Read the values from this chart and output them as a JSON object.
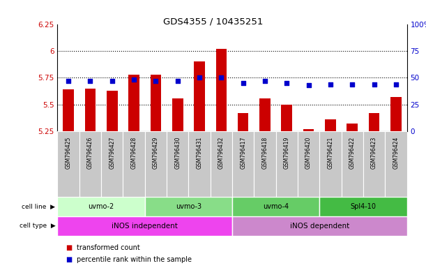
{
  "title": "GDS4355 / 10435251",
  "samples": [
    "GSM796425",
    "GSM796426",
    "GSM796427",
    "GSM796428",
    "GSM796429",
    "GSM796430",
    "GSM796431",
    "GSM796432",
    "GSM796417",
    "GSM796418",
    "GSM796419",
    "GSM796420",
    "GSM796421",
    "GSM796422",
    "GSM796423",
    "GSM796424"
  ],
  "transformed_count": [
    5.64,
    5.65,
    5.63,
    5.78,
    5.78,
    5.56,
    5.9,
    6.02,
    5.42,
    5.56,
    5.5,
    5.27,
    5.36,
    5.32,
    5.42,
    5.57
  ],
  "percentile_rank": [
    47,
    47,
    47,
    48,
    47,
    47,
    50,
    50,
    45,
    47,
    45,
    43,
    44,
    44,
    44,
    44
  ],
  "ylim_left": [
    5.25,
    6.25
  ],
  "ylim_right": [
    0,
    100
  ],
  "yticks_left": [
    5.25,
    5.5,
    5.75,
    6.0,
    6.25
  ],
  "yticks_right": [
    0,
    25,
    50,
    75,
    100
  ],
  "ytick_labels_left": [
    "5.25",
    "5.5",
    "5.75",
    "6",
    "6.25"
  ],
  "ytick_labels_right": [
    "0",
    "25",
    "50",
    "75",
    "100%"
  ],
  "bar_color": "#cc0000",
  "dot_color": "#0000cc",
  "grid_dotted_lines": [
    5.5,
    5.75,
    6.0
  ],
  "cell_line_labels": [
    "uvmo-2",
    "uvmo-3",
    "uvmo-4",
    "Spl4-10"
  ],
  "cell_line_colors": [
    "#ccffcc",
    "#88dd88",
    "#66cc66",
    "#44bb44"
  ],
  "cell_line_boundaries": [
    0,
    4,
    8,
    12,
    16
  ],
  "cell_type_labels": [
    "iNOS independent",
    "iNOS dependent"
  ],
  "cell_type_colors": [
    "#ee44ee",
    "#cc88cc"
  ],
  "cell_type_boundaries": [
    0,
    8,
    16
  ],
  "sample_box_color": "#c8c8c8",
  "bar_width": 0.5,
  "background_color": "#ffffff"
}
